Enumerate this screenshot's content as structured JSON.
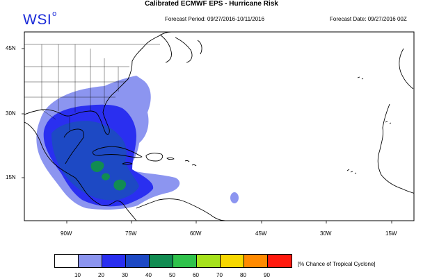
{
  "header": {
    "title": "Calibrated ECMWF EPS - Hurricane Risk",
    "logo": "WSI",
    "logo_mark": "o",
    "forecast_period": "Forecast Period: 09/27/2016-10/11/2016",
    "forecast_date": "Forecast Date: 09/27/2016 00Z"
  },
  "map": {
    "lat_labels": [
      "45N",
      "30N",
      "15N"
    ],
    "lon_labels": [
      "90W",
      "75W",
      "60W",
      "45W",
      "30W",
      "15W"
    ],
    "colors": {
      "land_fill": "#ffffff",
      "ocean_fill": "#ffffff",
      "coast": "#000000"
    }
  },
  "legend": {
    "label": "[% Chance of Tropical Cyclone]",
    "ticks": [
      "10",
      "20",
      "30",
      "40",
      "50",
      "60",
      "70",
      "80",
      "90"
    ],
    "colors": [
      "#ffffff",
      "#8c95f0",
      "#2a2ff0",
      "#1d49c4",
      "#118c52",
      "#2fc24b",
      "#a6e21c",
      "#f7d800",
      "#ff8a00",
      "#ff1a0e"
    ]
  }
}
